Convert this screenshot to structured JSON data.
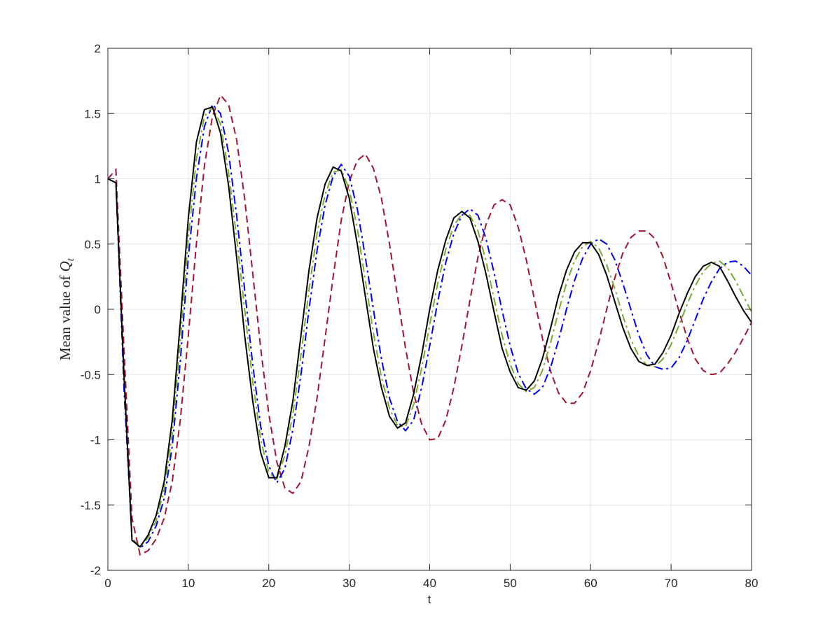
{
  "chart_data": {
    "type": "line",
    "xlabel": "t",
    "ylabel": "Mean value of ",
    "ylabel_symbol": "Q",
    "ylabel_subscript": "t",
    "x": [
      0,
      1,
      2,
      3,
      4,
      5,
      6,
      7,
      8,
      9,
      10,
      11,
      12,
      13,
      14,
      15,
      16,
      17,
      18,
      19,
      20,
      21,
      22,
      23,
      24,
      25,
      26,
      27,
      28,
      29,
      30,
      31,
      32,
      33,
      34,
      35,
      36,
      37,
      38,
      39,
      40,
      41,
      42,
      43,
      44,
      45,
      46,
      47,
      48,
      49,
      50,
      51,
      52,
      53,
      54,
      55,
      56,
      57,
      58,
      59,
      60,
      61,
      62,
      63,
      64,
      65,
      66,
      67,
      68,
      69,
      70,
      71,
      72,
      73,
      74,
      75,
      76,
      77,
      78,
      79,
      80
    ],
    "xlim": [
      0,
      80
    ],
    "xticks": [
      0,
      10,
      20,
      30,
      40,
      50,
      60,
      70,
      80
    ],
    "ylim": [
      -2,
      2
    ],
    "yticks": [
      -2,
      -1.5,
      -1,
      -0.5,
      0,
      0.5,
      1,
      1.5,
      2
    ],
    "grid": true,
    "series": [
      {
        "color": "#a2142f",
        "dash": "dashed",
        "values": [
          1,
          1.07,
          -0.3,
          -1.6,
          -1.88,
          -1.85,
          -1.76,
          -1.6,
          -1.32,
          -0.85,
          -0.2,
          0.5,
          1.1,
          1.48,
          1.64,
          1.57,
          1.3,
          0.85,
          0.28,
          -0.3,
          -0.8,
          -1.17,
          -1.37,
          -1.41,
          -1.32,
          -1.05,
          -0.68,
          -0.22,
          0.25,
          0.68,
          0.98,
          1.14,
          1.19,
          1.08,
          0.85,
          0.5,
          0.1,
          -0.3,
          -0.64,
          -0.88,
          -1.0,
          -0.99,
          -0.85,
          -0.6,
          -0.28,
          0.07,
          0.4,
          0.65,
          0.8,
          0.84,
          0.8,
          0.63,
          0.38,
          0.08,
          -0.22,
          -0.47,
          -0.64,
          -0.72,
          -0.72,
          -0.64,
          -0.47,
          -0.25,
          0.0,
          0.24,
          0.43,
          0.55,
          0.6,
          0.6,
          0.54,
          0.4,
          0.2,
          -0.02,
          -0.22,
          -0.38,
          -0.47,
          -0.5,
          -0.49,
          -0.42,
          -0.33,
          -0.22,
          -0.1
        ]
      },
      {
        "color": "#0000ff",
        "dash": "dashdot",
        "values": [
          1,
          0.97,
          -0.6,
          -1.75,
          -1.83,
          -1.78,
          -1.66,
          -1.45,
          -1.05,
          -0.4,
          0.4,
          1.0,
          1.4,
          1.57,
          1.5,
          1.2,
          0.72,
          0.15,
          -0.42,
          -0.9,
          -1.2,
          -1.33,
          -1.22,
          -0.92,
          -0.5,
          0.0,
          0.45,
          0.8,
          1.02,
          1.11,
          1.02,
          0.77,
          0.4,
          0.0,
          -0.38,
          -0.68,
          -0.86,
          -0.93,
          -0.85,
          -0.6,
          -0.28,
          0.06,
          0.36,
          0.58,
          0.72,
          0.77,
          0.72,
          0.54,
          0.28,
          -0.01,
          -0.28,
          -0.49,
          -0.61,
          -0.65,
          -0.6,
          -0.45,
          -0.24,
          0.0,
          0.22,
          0.39,
          0.5,
          0.54,
          0.5,
          0.38,
          0.2,
          0.0,
          -0.2,
          -0.35,
          -0.44,
          -0.46,
          -0.45,
          -0.37,
          -0.24,
          -0.08,
          0.08,
          0.21,
          0.31,
          0.36,
          0.37,
          0.33,
          0.26
        ]
      },
      {
        "color": "#77ac30",
        "dash": "dashdot",
        "values": [
          1,
          0.97,
          -0.5,
          -1.76,
          -1.82,
          -1.75,
          -1.62,
          -1.38,
          -0.95,
          -0.25,
          0.55,
          1.15,
          1.48,
          1.55,
          1.42,
          1.05,
          0.55,
          0.0,
          -0.55,
          -1.0,
          -1.25,
          -1.3,
          -1.12,
          -0.8,
          -0.35,
          0.15,
          0.58,
          0.88,
          1.05,
          1.07,
          0.92,
          0.62,
          0.22,
          -0.18,
          -0.52,
          -0.76,
          -0.89,
          -0.9,
          -0.73,
          -0.45,
          -0.12,
          0.2,
          0.46,
          0.64,
          0.73,
          0.72,
          0.6,
          0.37,
          0.08,
          -0.2,
          -0.42,
          -0.57,
          -0.63,
          -0.6,
          -0.47,
          -0.26,
          -0.02,
          0.2,
          0.37,
          0.48,
          0.52,
          0.47,
          0.34,
          0.16,
          -0.05,
          -0.23,
          -0.36,
          -0.43,
          -0.44,
          -0.38,
          -0.27,
          -0.12,
          0.04,
          0.18,
          0.29,
          0.35,
          0.37,
          0.32,
          0.22,
          0.1,
          -0.02
        ]
      },
      {
        "color": "#000000",
        "dash": "solid",
        "values": [
          1,
          0.97,
          -0.5,
          -1.77,
          -1.82,
          -1.73,
          -1.58,
          -1.32,
          -0.85,
          -0.1,
          0.7,
          1.28,
          1.53,
          1.55,
          1.35,
          0.95,
          0.4,
          -0.2,
          -0.7,
          -1.1,
          -1.29,
          -1.29,
          -1.05,
          -0.7,
          -0.2,
          0.3,
          0.7,
          0.96,
          1.09,
          1.06,
          0.85,
          0.5,
          0.1,
          -0.3,
          -0.6,
          -0.82,
          -0.91,
          -0.87,
          -0.65,
          -0.35,
          0.0,
          0.3,
          0.53,
          0.7,
          0.75,
          0.7,
          0.52,
          0.27,
          -0.02,
          -0.3,
          -0.48,
          -0.6,
          -0.62,
          -0.55,
          -0.38,
          -0.15,
          0.1,
          0.3,
          0.44,
          0.51,
          0.51,
          0.42,
          0.26,
          0.06,
          -0.14,
          -0.3,
          -0.4,
          -0.43,
          -0.42,
          -0.33,
          -0.2,
          -0.03,
          0.12,
          0.25,
          0.33,
          0.36,
          0.33,
          0.22,
          0.1,
          -0.01,
          -0.1
        ]
      }
    ]
  }
}
